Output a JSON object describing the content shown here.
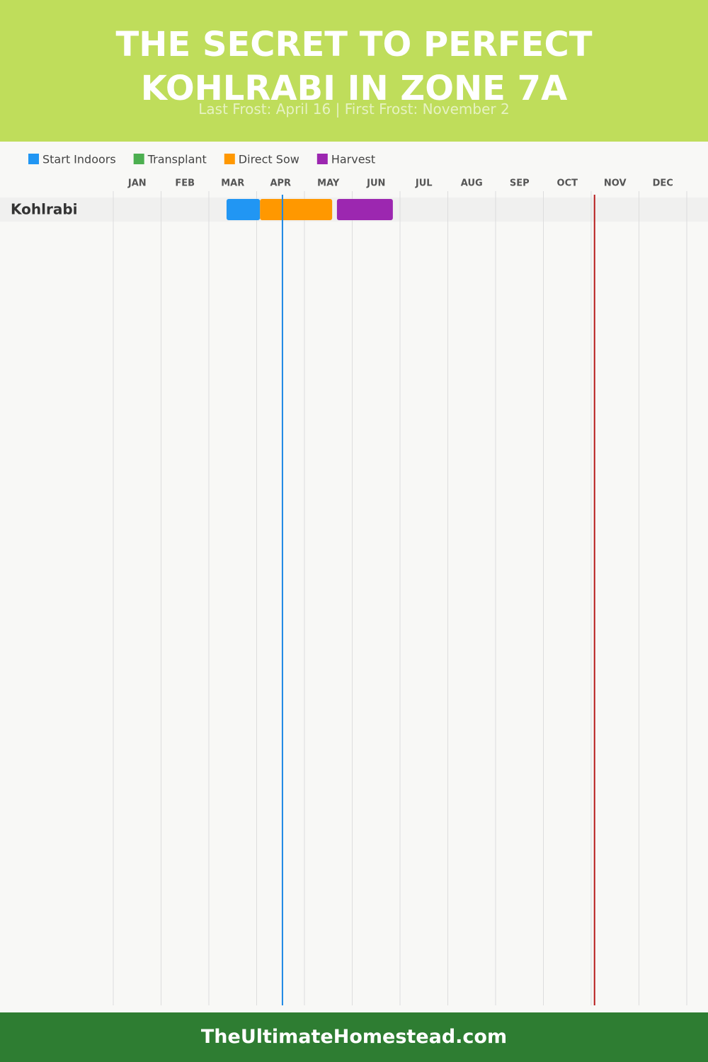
{
  "chart_data": {
    "type": "gantt",
    "title": "THE SECRET TO PERFECT KOHLRABI IN ZONE 7A",
    "subtitle": "Last Frost: April 16 | First Frost: November 2",
    "categories": [
      "Kohlrabi"
    ],
    "xlim": [
      0,
      12
    ],
    "xticks": [
      {
        "value": 0.5,
        "label": "JAN"
      },
      {
        "value": 1.5,
        "label": "FEB"
      },
      {
        "value": 2.5,
        "label": "MAR"
      },
      {
        "value": 3.5,
        "label": "APR"
      },
      {
        "value": 4.5,
        "label": "MAY"
      },
      {
        "value": 5.5,
        "label": "JUN"
      },
      {
        "value": 6.5,
        "label": "JUL"
      },
      {
        "value": 7.5,
        "label": "AUG"
      },
      {
        "value": 8.5,
        "label": "SEP"
      },
      {
        "value": 9.5,
        "label": "OCT"
      },
      {
        "value": 10.5,
        "label": "NOV"
      },
      {
        "value": 11.5,
        "label": "DEC"
      }
    ],
    "grid": true,
    "series": [
      {
        "name": "Start Indoors",
        "color": "#2196f3",
        "values": [
          [
            2.37,
            3.07
          ]
        ]
      },
      {
        "name": "Transplant",
        "color": "#4caf50",
        "values": [
          null
        ]
      },
      {
        "name": "Direct Sow",
        "color": "#ff9800",
        "values": [
          [
            3.07,
            4.58
          ]
        ]
      },
      {
        "name": "Harvest",
        "color": "#9c27b0",
        "values": [
          [
            4.68,
            5.85
          ]
        ]
      }
    ],
    "markers": [
      {
        "value": 3.54,
        "color": "#1e88e5"
      },
      {
        "value": 10.07,
        "color": "#b71c1c"
      }
    ]
  },
  "footer": "TheUltimateHomestead.com"
}
